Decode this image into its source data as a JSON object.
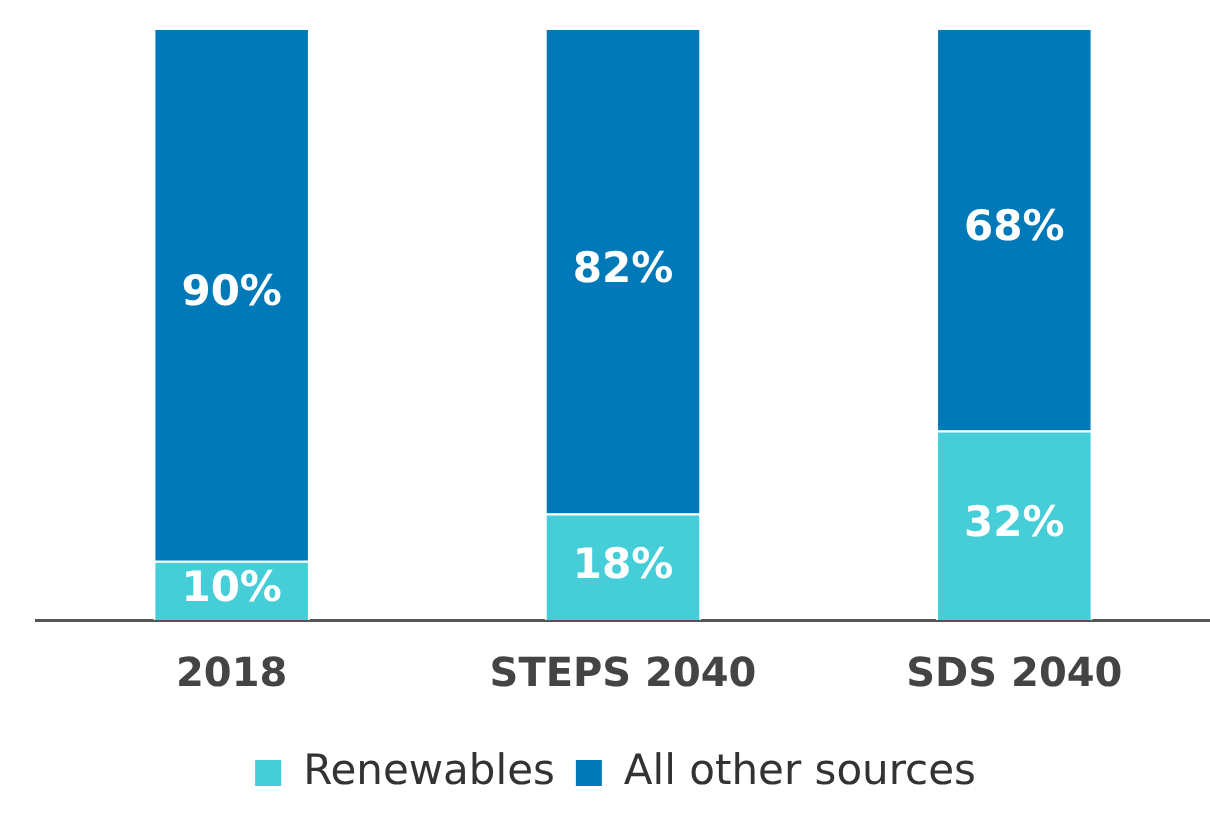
{
  "chart_data": {
    "type": "bar",
    "stacked": true,
    "categories": [
      "2018",
      "STEPS 2040",
      "SDS 2040"
    ],
    "ylim": [
      0,
      100
    ],
    "tick_labels": "x",
    "grid": false,
    "legend": "bottom",
    "series": [
      {
        "name": "Renewables",
        "color": "#45cdd8",
        "values": [
          10,
          18,
          32
        ],
        "value_labels": [
          "10%",
          "18%",
          "32%"
        ]
      },
      {
        "name": "All other sources",
        "color": "#0079b8",
        "values": [
          90,
          82,
          68
        ],
        "value_labels": [
          "90%",
          "82%",
          "68%"
        ]
      }
    ]
  }
}
